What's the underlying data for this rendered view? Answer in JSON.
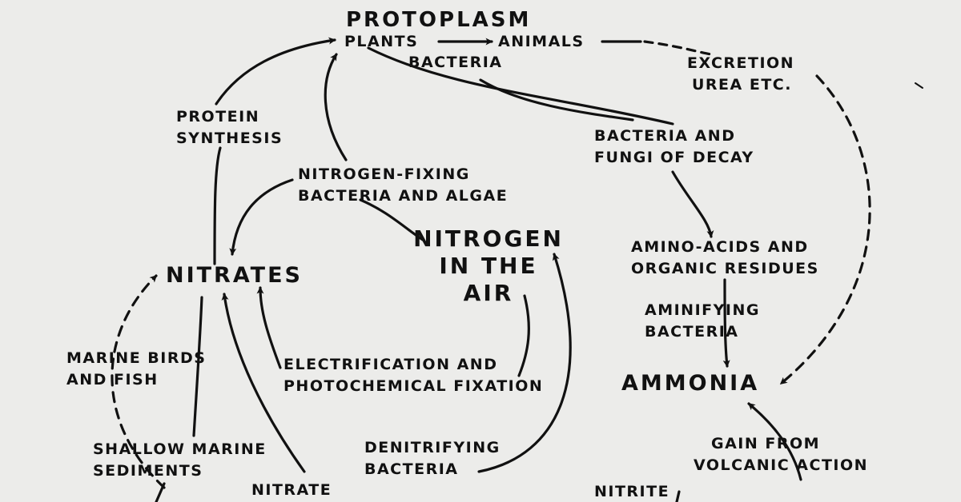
{
  "labels": {
    "protoplasm": "PROTOPLASM",
    "plants": "PLANTS",
    "animals": "ANIMALS",
    "bacteria_top": "BACTERIA",
    "excretion": [
      "EXCRETION",
      "UREA ETC."
    ],
    "protein_synthesis": [
      "PROTEIN",
      "SYNTHESIS"
    ],
    "decay": [
      "BACTERIA AND",
      "FUNGI OF DECAY"
    ],
    "nitrogen_fixing": [
      "NITROGEN-FIXING",
      "BACTERIA AND ALGAE"
    ],
    "nitrogen_air": [
      "NITROGEN",
      "IN THE",
      "AIR"
    ],
    "nitrates": "NITRATES",
    "amino": [
      "AMINO-ACIDS AND",
      "ORGANIC RESIDUES"
    ],
    "aminifying": [
      "AMINIFYING",
      "BACTERIA"
    ],
    "marine_birds": [
      "MARINE BIRDS",
      "AND FISH"
    ],
    "electrification": [
      "ELECTRIFICATION AND",
      "PHOTOCHEMICAL FIXATION"
    ],
    "ammonia": "AMMONIA",
    "shallow_marine": [
      "SHALLOW MARINE",
      "SEDIMENTS"
    ],
    "denitrifying": [
      "DENITRIFYING",
      "BACTERIA"
    ],
    "volcanic": [
      "GAIN FROM",
      "VOLCANIC ACTION"
    ],
    "nitrate_bottom": "NITRATE",
    "nitrite": "NITRITE"
  }
}
